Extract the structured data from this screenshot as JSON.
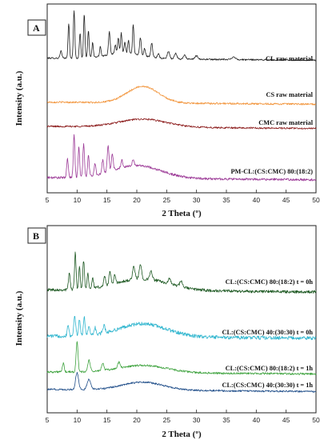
{
  "chart_data": [
    {
      "type": "line",
      "panel_letter": "A",
      "xlabel": "2 Theta (º)",
      "ylabel": "Intensity (a.u.)",
      "xlim": [
        5,
        50
      ],
      "xticks": [
        "5",
        "10",
        "15",
        "20",
        "25",
        "30",
        "35",
        "40",
        "45",
        "50"
      ],
      "grid": false,
      "series": [
        {
          "name": "CL raw material",
          "color": "#1f1f1f",
          "baseline": 0.8,
          "noise": 0.05,
          "peaks": [
            [
              7.3,
              0.5,
              0.15
            ],
            [
              8.6,
              2.4,
              0.12
            ],
            [
              9.5,
              3.3,
              0.12
            ],
            [
              10.5,
              1.7,
              0.12
            ],
            [
              11.2,
              3.0,
              0.12
            ],
            [
              11.9,
              1.9,
              0.12
            ],
            [
              12.6,
              1.0,
              0.12
            ],
            [
              13.9,
              0.7,
              0.12
            ],
            [
              15.4,
              1.6,
              0.14
            ],
            [
              16.4,
              0.6,
              0.12
            ],
            [
              16.9,
              1.1,
              0.12
            ],
            [
              17.4,
              1.4,
              0.12
            ],
            [
              18.0,
              0.8,
              0.12
            ],
            [
              18.6,
              0.9,
              0.12
            ],
            [
              19.4,
              2.0,
              0.12
            ],
            [
              20.6,
              1.2,
              0.14
            ],
            [
              21.3,
              0.5,
              0.14
            ],
            [
              22.5,
              1.0,
              0.14
            ],
            [
              23.6,
              0.3,
              0.15
            ],
            [
              25.3,
              0.5,
              0.2
            ],
            [
              26.5,
              0.4,
              0.2
            ],
            [
              28.0,
              0.3,
              0.2
            ],
            [
              30.0,
              0.25,
              0.25
            ],
            [
              36.2,
              0.2,
              0.3
            ]
          ],
          "humps": [
            [
              18,
              0.4,
              3.0
            ]
          ]
        },
        {
          "name": "CS raw material",
          "color": "#f2953c",
          "baseline": 0.3,
          "noise": 0.06,
          "peaks": [],
          "humps": [
            [
              21,
              1.15,
              2.6
            ]
          ]
        },
        {
          "name": "CMC raw material",
          "color": "#8b1a1a",
          "baseline": 0.45,
          "noise": 0.06,
          "peaks": [],
          "humps": [
            [
              21,
              0.55,
              4.0
            ]
          ]
        },
        {
          "name": "PM-CL:(CS:CMC) 80:(18:2)",
          "color": "#9c3a97",
          "baseline": 0.5,
          "noise": 0.08,
          "peaks": [
            [
              8.4,
              1.3,
              0.14
            ],
            [
              9.5,
              3.0,
              0.13
            ],
            [
              10.3,
              2.1,
              0.13
            ],
            [
              11.1,
              2.3,
              0.13
            ],
            [
              11.9,
              1.5,
              0.13
            ],
            [
              13.0,
              0.8,
              0.14
            ],
            [
              14.3,
              0.9,
              0.15
            ],
            [
              15.2,
              1.8,
              0.15
            ],
            [
              15.9,
              1.2,
              0.15
            ],
            [
              17.5,
              0.5,
              0.15
            ],
            [
              19.4,
              0.4,
              0.15
            ]
          ],
          "humps": [
            [
              20,
              0.9,
              4.0
            ]
          ]
        }
      ]
    },
    {
      "type": "line",
      "panel_letter": "B",
      "xlabel": "2 Theta (º)",
      "ylabel": "Intensity (a.u.)",
      "xlim": [
        5,
        50
      ],
      "xticks": [
        "5",
        "10",
        "15",
        "20",
        "25",
        "30",
        "35",
        "40",
        "45",
        "50"
      ],
      "grid": false,
      "series": [
        {
          "name": "CL:(CS:CMC) 80:(18:2)    t = 0h",
          "color": "#1f5a24",
          "baseline": 0.6,
          "noise": 0.1,
          "peaks": [
            [
              8.7,
              1.2,
              0.14
            ],
            [
              9.7,
              2.6,
              0.13
            ],
            [
              10.4,
              1.5,
              0.13
            ],
            [
              11.1,
              2.0,
              0.13
            ],
            [
              11.8,
              1.1,
              0.13
            ],
            [
              12.6,
              0.7,
              0.14
            ],
            [
              14.6,
              0.7,
              0.15
            ],
            [
              15.5,
              1.0,
              0.15
            ],
            [
              16.3,
              0.6,
              0.15
            ],
            [
              19.5,
              0.9,
              0.2
            ],
            [
              20.6,
              1.0,
              0.2
            ],
            [
              22.4,
              0.6,
              0.2
            ],
            [
              25.5,
              0.35,
              0.2
            ],
            [
              27.4,
              0.4,
              0.2
            ]
          ],
          "humps": [
            [
              21,
              0.8,
              4.5
            ]
          ]
        },
        {
          "name": "CL:(CS:CMC) 40:(30:30)   t = 0h",
          "color": "#31b6cf",
          "baseline": 0.5,
          "noise": 0.12,
          "peaks": [
            [
              8.5,
              0.8,
              0.15
            ],
            [
              9.6,
              1.5,
              0.15
            ],
            [
              10.4,
              1.1,
              0.15
            ],
            [
              11.2,
              1.3,
              0.15
            ],
            [
              12.0,
              0.7,
              0.15
            ],
            [
              13.0,
              0.5,
              0.15
            ],
            [
              14.5,
              0.5,
              0.2
            ]
          ],
          "humps": [
            [
              21,
              0.9,
              4.0
            ]
          ]
        },
        {
          "name": "CL:(CS:CMC) 80:(18:2)    t = 1h",
          "color": "#3fa33f",
          "baseline": 0.4,
          "noise": 0.07,
          "peaks": [
            [
              7.7,
              0.6,
              0.15
            ],
            [
              10.0,
              2.1,
              0.16
            ],
            [
              12.0,
              0.8,
              0.2
            ],
            [
              14.3,
              0.5,
              0.2
            ],
            [
              17.0,
              0.4,
              0.2
            ]
          ],
          "humps": [
            [
              21,
              0.5,
              4.0
            ]
          ]
        },
        {
          "name": "CL:(CS:CMC) 40:(30:30)   t = 1h",
          "color": "#214f8a",
          "baseline": 0.35,
          "noise": 0.06,
          "peaks": [
            [
              10.0,
              1.15,
              0.25
            ],
            [
              12.0,
              0.7,
              0.3
            ]
          ],
          "humps": [
            [
              21,
              0.55,
              3.5
            ]
          ]
        }
      ]
    }
  ]
}
